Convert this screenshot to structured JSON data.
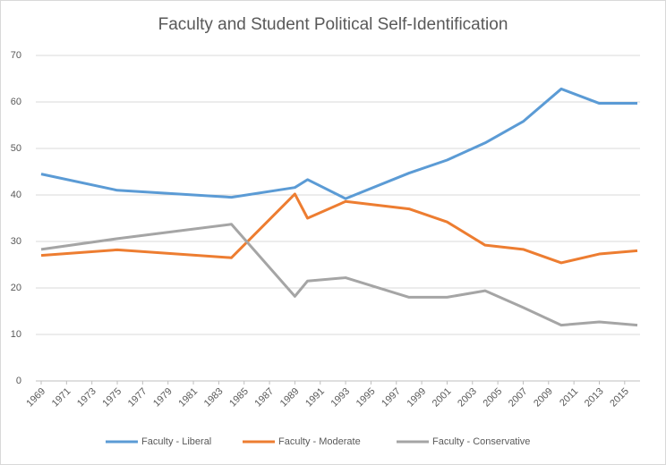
{
  "chart_data": {
    "type": "line",
    "title": "Faculty and Student Political Self-Identification",
    "x": [
      1969,
      1975,
      1984,
      1989,
      1990,
      1993,
      1998,
      2001,
      2004,
      2007,
      2010,
      2013,
      2016
    ],
    "series": [
      {
        "name": "Faculty - Liberal",
        "color": "#5b9bd5",
        "values": [
          44.5,
          41,
          39.5,
          41.6,
          43.3,
          39.2,
          44.7,
          47.5,
          51.2,
          55.8,
          62.8,
          59.7,
          59.7
        ]
      },
      {
        "name": "Faculty - Moderate",
        "color": "#ed7d31",
        "values": [
          27,
          28.2,
          26.5,
          40.2,
          35,
          38.6,
          37,
          34.2,
          29.2,
          28.3,
          25.4,
          27.3,
          28
        ]
      },
      {
        "name": "Faculty - Conservative",
        "color": "#a5a5a5",
        "values": [
          28.3,
          30.6,
          33.7,
          18.2,
          21.5,
          22.2,
          18,
          18,
          19.4,
          15.8,
          12,
          12.7,
          12
        ]
      }
    ],
    "xlim": [
      1969,
      2016
    ],
    "xticks": [
      1969,
      1971,
      1973,
      1975,
      1977,
      1979,
      1981,
      1983,
      1985,
      1987,
      1989,
      1991,
      1993,
      1995,
      1997,
      1999,
      2001,
      2003,
      2005,
      2007,
      2009,
      2011,
      2013,
      2015
    ],
    "ylim": [
      0,
      70
    ],
    "yticks": [
      0,
      10,
      20,
      30,
      40,
      50,
      60,
      70
    ],
    "grid": true,
    "legend": "bottom"
  }
}
